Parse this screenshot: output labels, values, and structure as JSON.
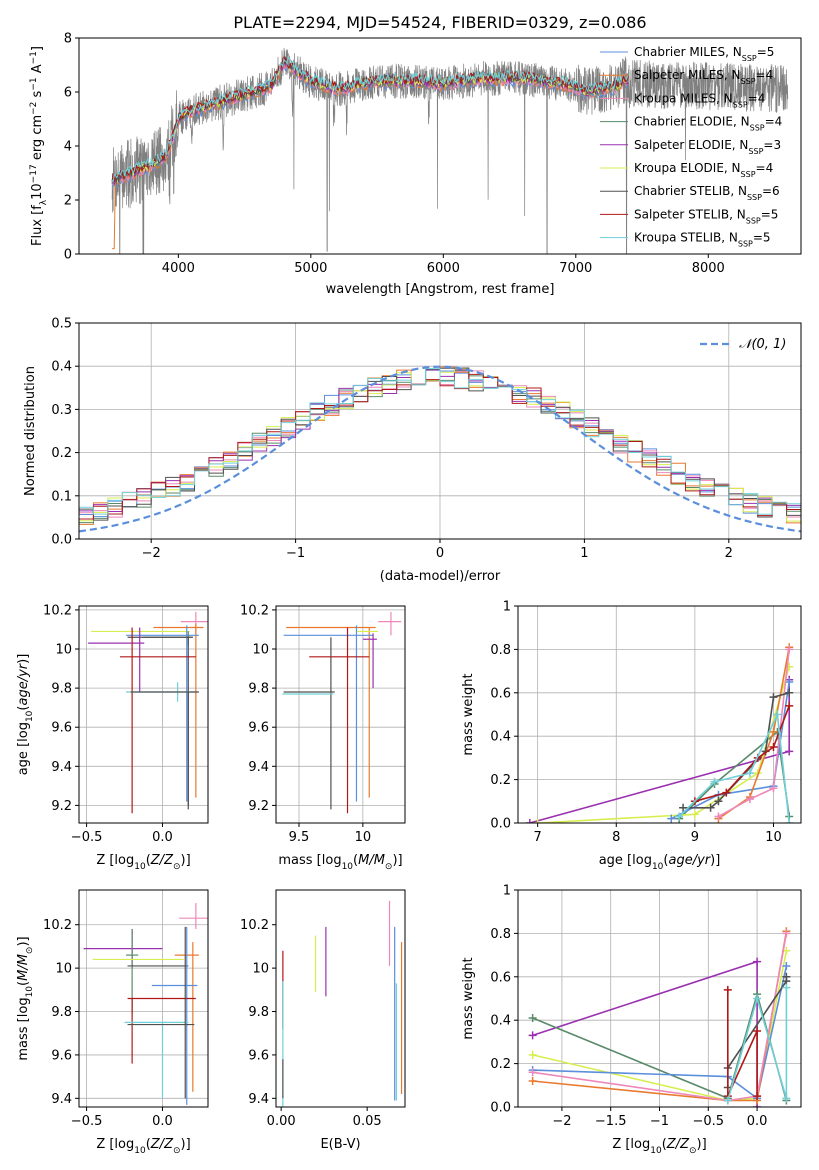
{
  "figure_title": "PLATE=2294, MJD=54524, FIBERID=0329, z=0.086",
  "colors": {
    "chabrier_miles": "#5b8fdc",
    "salpeter_miles": "#e87a30",
    "kroupa_miles": "#ee88bb",
    "chabrier_elodie": "#5a8a6a",
    "salpeter_elodie": "#9a30b0",
    "kroupa_elodie": "#d8ee50",
    "chabrier_stelib": "#505050",
    "salpeter_stelib": "#b01818",
    "kroupa_stelib": "#70d0d8",
    "data": "#808080",
    "normal": "#5b8fdc"
  },
  "chart_data": [
    {
      "id": "spectrum",
      "type": "line",
      "xlabel": "wavelength [Angstrom, rest frame]",
      "ylabel": "Flux [f",
      "xlim": [
        3250,
        8700
      ],
      "ylim": [
        0,
        8
      ],
      "xticks": [
        4000,
        5000,
        6000,
        7000,
        8000
      ],
      "yticks": [
        0,
        2,
        4,
        6,
        8
      ],
      "grid": false,
      "legend_position": "top-right",
      "legend": [
        {
          "key": "chabrier_miles",
          "label": "Chabrier MILES, N",
          "sub": "SSP",
          "value": "=5"
        },
        {
          "key": "salpeter_miles",
          "label": "Salpeter MILES, N",
          "sub": "SSP",
          "value": "=4"
        },
        {
          "key": "kroupa_miles",
          "label": "Kroupa MILES, N",
          "sub": "SSP",
          "value": "=4"
        },
        {
          "key": "chabrier_elodie",
          "label": "Chabrier ELODIE, N",
          "sub": "SSP",
          "value": "=4"
        },
        {
          "key": "salpeter_elodie",
          "label": "Salpeter ELODIE, N",
          "sub": "SSP",
          "value": "=3"
        },
        {
          "key": "kroupa_elodie",
          "label": "Kroupa ELODIE, N",
          "sub": "SSP",
          "value": "=4"
        },
        {
          "key": "chabrier_stelib",
          "label": "Chabrier STELIB, N",
          "sub": "SSP",
          "value": "=6"
        },
        {
          "key": "salpeter_stelib",
          "label": "Salpeter STELIB, N",
          "sub": "SSP",
          "value": "=5"
        },
        {
          "key": "kroupa_stelib",
          "label": "Kroupa STELIB, N",
          "sub": "SSP",
          "value": "=5"
        }
      ],
      "continuum": {
        "x": [
          3500,
          3650,
          3800,
          3900,
          3950,
          4000,
          4100,
          4300,
          4500,
          4700,
          4800,
          5000,
          5200,
          5500,
          5800,
          6000,
          6300,
          6600,
          6900,
          7100,
          7300,
          7400
        ],
        "y": [
          2.7,
          3.0,
          3.3,
          3.6,
          4.2,
          5.0,
          5.3,
          5.6,
          5.9,
          6.2,
          7.1,
          6.4,
          6.1,
          6.4,
          6.4,
          6.3,
          6.5,
          6.5,
          6.3,
          6.0,
          6.2,
          6.5
        ]
      },
      "model_range": [
        3500,
        7400
      ],
      "data_range": [
        3500,
        8600
      ]
    },
    {
      "id": "residuals",
      "type": "histogram",
      "xlabel": "(data-model)/error",
      "ylabel": "Normed distribution",
      "xlim": [
        -2.5,
        2.5
      ],
      "ylim": [
        0,
        0.5
      ],
      "xticks": [
        -2,
        -1,
        0,
        1,
        2
      ],
      "yticks": [
        0.0,
        0.1,
        0.2,
        0.3,
        0.4,
        0.5
      ],
      "grid": true,
      "legend_position": "top-right",
      "legend_label": "𝒩(0, 1)",
      "bin_width": 0.1,
      "reference_curve": "normal(0,1)"
    },
    {
      "id": "age_vs_Z",
      "type": "errorbar",
      "xlabel": "Z [log",
      "ylabel": "age  [log",
      "xlim": [
        -0.55,
        0.3
      ],
      "ylim": [
        9.11,
        10.22
      ],
      "xticks": [
        -0.5,
        0.0
      ],
      "yticks": [
        9.2,
        9.4,
        9.6,
        9.8,
        10.0,
        10.2
      ],
      "grid": true,
      "points": [
        {
          "key": "kroupa_miles",
          "x": 0.22,
          "y": 10.14,
          "xerr": [
            0.1,
            0.08
          ],
          "yerr": [
            0.07,
            0.05
          ]
        },
        {
          "key": "salpeter_miles",
          "x": 0.22,
          "y": 10.11,
          "xerr": [
            0.28,
            0.05
          ],
          "yerr": [
            0.87,
            0.02
          ]
        },
        {
          "key": "kroupa_elodie",
          "x": 0.05,
          "y": 10.09,
          "xerr": [
            0.52,
            0.13
          ],
          "yerr": [
            0.0,
            0.0
          ]
        },
        {
          "key": "chabrier_miles",
          "x": 0.16,
          "y": 10.07,
          "xerr": [
            0.4,
            0.08
          ],
          "yerr": [
            0.85,
            0.05
          ]
        },
        {
          "key": "chabrier_elodie",
          "x": 0.17,
          "y": 10.06,
          "xerr": [
            0.3,
            0.03
          ],
          "yerr": [
            0.04,
            0.03
          ]
        },
        {
          "key": "chabrier_stelib",
          "x": 0.17,
          "y": 10.06,
          "xerr": [
            0.4,
            0.03
          ],
          "yerr": [
            0.88,
            0.0
          ]
        },
        {
          "key": "salpeter_elodie",
          "x": -0.15,
          "y": 10.03,
          "xerr": [
            0.34,
            0.03
          ],
          "yerr": [
            0.25,
            0.08
          ]
        },
        {
          "key": "salpeter_stelib",
          "x": -0.2,
          "y": 9.96,
          "xerr": [
            0.08,
            0.42
          ],
          "yerr": [
            0.8,
            0.15
          ]
        },
        {
          "key": "kroupa_stelib",
          "x": 0.1,
          "y": 9.78,
          "xerr": [
            0.34,
            0.13
          ],
          "yerr": [
            0.05,
            0.05
          ]
        },
        {
          "key": "chabrier_stelib",
          "x": 0.17,
          "y": 9.78,
          "xerr": [
            0.38,
            0.07
          ],
          "yerr": [
            0.58,
            0.0
          ]
        }
      ]
    },
    {
      "id": "age_vs_mass",
      "type": "errorbar",
      "xlabel": "mass [log",
      "ylabel": "",
      "xlim": [
        9.32,
        10.33
      ],
      "ylim": [
        9.11,
        10.22
      ],
      "xticks": [
        9.5,
        10.0
      ],
      "yticks": [
        9.2,
        9.4,
        9.6,
        9.8,
        10.0,
        10.2
      ],
      "grid": true,
      "points": [
        {
          "key": "kroupa_miles",
          "x": 10.22,
          "y": 10.14,
          "xerr": [
            0.1,
            0.08
          ],
          "yerr": [
            0.07,
            0.05
          ]
        },
        {
          "key": "salpeter_miles",
          "x": 10.05,
          "y": 10.11,
          "xerr": [
            0.65,
            0.05
          ],
          "yerr": [
            0.87,
            0.0
          ]
        },
        {
          "key": "kroupa_elodie",
          "x": 10.05,
          "y": 10.09,
          "xerr": [
            0.1,
            0.07
          ],
          "yerr": [
            0.0,
            0.0
          ]
        },
        {
          "key": "chabrier_miles",
          "x": 9.95,
          "y": 10.07,
          "xerr": [
            0.57,
            0.13
          ],
          "yerr": [
            0.85,
            0.05
          ]
        },
        {
          "key": "salpeter_elodie",
          "x": 10.08,
          "y": 10.05,
          "xerr": [
            0.08,
            0.03
          ],
          "yerr": [
            0.25,
            0.03
          ]
        },
        {
          "key": "chabrier_stelib",
          "x": 9.75,
          "y": 10.06,
          "xerr": [
            0.0,
            0.0
          ],
          "yerr": [
            0.88,
            0.0
          ]
        },
        {
          "key": "salpeter_stelib",
          "x": 9.88,
          "y": 9.96,
          "xerr": [
            0.3,
            0.17
          ],
          "yerr": [
            0.8,
            0.15
          ]
        },
        {
          "key": "kroupa_stelib",
          "x": 9.65,
          "y": 9.77,
          "xerr": [
            0.28,
            0.12
          ],
          "yerr": [
            0.0,
            0.0
          ]
        },
        {
          "key": "chabrier_stelib",
          "x": 9.6,
          "y": 9.78,
          "xerr": [
            0.22,
            0.18
          ],
          "yerr": [
            0.0,
            0.0
          ]
        }
      ]
    },
    {
      "id": "massweight_vs_age",
      "type": "line",
      "xlabel": "age  [log",
      "ylabel": "mass weight",
      "xlim": [
        6.75,
        10.35
      ],
      "ylim": [
        0,
        1
      ],
      "xticks": [
        7,
        8,
        9,
        10
      ],
      "yticks": [
        0.0,
        0.2,
        0.4,
        0.6,
        0.8,
        1.0
      ],
      "grid": true,
      "series": [
        {
          "key": "salpeter_elodie",
          "x": [
            6.9,
            10.2,
            10.2
          ],
          "y": [
            0.0,
            0.33,
            0.66
          ]
        },
        {
          "key": "chabrier_elodie",
          "x": [
            8.8,
            9.25,
            10.05,
            10.2
          ],
          "y": [
            0.02,
            0.18,
            0.42,
            0.03
          ]
        },
        {
          "key": "kroupa_elodie",
          "x": [
            7.0,
            9.0,
            9.8,
            10.2
          ],
          "y": [
            0.0,
            0.04,
            0.23,
            0.72
          ]
        },
        {
          "key": "chabrier_miles",
          "x": [
            8.7,
            9.3,
            10.0,
            10.2
          ],
          "y": [
            0.02,
            0.13,
            0.17,
            0.65
          ]
        },
        {
          "key": "salpeter_miles",
          "x": [
            9.3,
            9.7,
            10.0,
            10.2
          ],
          "y": [
            0.02,
            0.12,
            0.42,
            0.81
          ]
        },
        {
          "key": "kroupa_miles",
          "x": [
            9.3,
            9.7,
            10.0,
            10.2
          ],
          "y": [
            0.03,
            0.11,
            0.16,
            0.8
          ]
        },
        {
          "key": "chabrier_stelib",
          "x": [
            8.85,
            9.2,
            9.3,
            9.9,
            10.0,
            10.2
          ],
          "y": [
            0.07,
            0.07,
            0.1,
            0.33,
            0.58,
            0.6
          ]
        },
        {
          "key": "salpeter_stelib",
          "x": [
            9.0,
            9.4,
            9.8,
            10.0,
            10.2
          ],
          "y": [
            0.1,
            0.14,
            0.3,
            0.35,
            0.54
          ]
        },
        {
          "key": "kroupa_stelib",
          "x": [
            8.8,
            9.25,
            9.7,
            10.05,
            10.2
          ],
          "y": [
            0.03,
            0.19,
            0.23,
            0.5,
            0.0
          ]
        }
      ]
    },
    {
      "id": "mass_vs_Z",
      "type": "errorbar",
      "xlabel": "Z [log",
      "ylabel": "mass [log",
      "xlim": [
        -0.55,
        0.3
      ],
      "ylim": [
        9.36,
        10.36
      ],
      "xticks": [
        -0.5,
        0.0
      ],
      "yticks": [
        9.4,
        9.6,
        9.8,
        10.0,
        10.2
      ],
      "grid": true,
      "points": [
        {
          "key": "kroupa_miles",
          "x": 0.22,
          "y": 10.23,
          "xerr": [
            0.11,
            0.08
          ],
          "yerr": [
            0.05,
            0.07
          ]
        },
        {
          "key": "salpeter_elodie",
          "x": -0.2,
          "y": 10.09,
          "xerr": [
            0.32,
            0.2
          ],
          "yerr": [
            0.09,
            0.09
          ]
        },
        {
          "key": "chabrier_elodie",
          "x": -0.2,
          "y": 10.06,
          "xerr": [
            0.04,
            0.04
          ],
          "yerr": [
            0.27,
            0.12
          ]
        },
        {
          "key": "salpeter_miles",
          "x": 0.2,
          "y": 10.06,
          "xerr": [
            0.12,
            0.04
          ],
          "yerr": [
            0.63,
            0.06
          ]
        },
        {
          "key": "kroupa_elodie",
          "x": 0.04,
          "y": 10.04,
          "xerr": [
            0.5,
            0.1
          ],
          "yerr": [
            0.0,
            0.0
          ]
        },
        {
          "key": "chabrier_stelib",
          "x": 0.0,
          "y": 10.01,
          "xerr": [
            0.23,
            0.17
          ],
          "yerr": [
            0.0,
            0.0
          ]
        },
        {
          "key": "chabrier_miles",
          "x": 0.16,
          "y": 9.92,
          "xerr": [
            0.23,
            0.07
          ],
          "yerr": [
            0.55,
            0.27
          ]
        },
        {
          "key": "salpeter_stelib",
          "x": -0.2,
          "y": 9.86,
          "xerr": [
            0.03,
            0.42
          ],
          "yerr": [
            0.3,
            0.0
          ]
        },
        {
          "key": "kroupa_stelib",
          "x": 0.0,
          "y": 9.75,
          "xerr": [
            0.25,
            0.17
          ],
          "yerr": [
            0.35,
            0.0
          ]
        },
        {
          "key": "chabrier_stelib",
          "x": 0.15,
          "y": 9.74,
          "xerr": [
            0.38,
            0.06
          ],
          "yerr": [
            0.34,
            0.45
          ]
        }
      ]
    },
    {
      "id": "mass_vs_ebv",
      "type": "errorbar",
      "xlabel": "E(B-V)",
      "ylabel": "",
      "xlim": [
        -0.003,
        0.072
      ],
      "ylim": [
        9.36,
        10.36
      ],
      "xticks": [
        0.0,
        0.05
      ],
      "yticks": [
        9.4,
        9.6,
        9.8,
        10.0,
        10.2
      ],
      "grid": false,
      "points": [
        {
          "key": "kroupa_miles",
          "x": 0.063,
          "y": 10.16,
          "yerr": [
            0.15,
            0.15
          ]
        },
        {
          "key": "salpeter_elodie",
          "x": 0.026,
          "y": 10.03,
          "yerr": [
            0.16,
            0.16
          ]
        },
        {
          "key": "kroupa_elodie",
          "x": 0.02,
          "y": 10.02,
          "yerr": [
            0.13,
            0.13
          ]
        },
        {
          "key": "salpeter_miles",
          "x": 0.07,
          "y": 9.77,
          "yerr": [
            0.35,
            0.35
          ]
        },
        {
          "key": "chabrier_miles",
          "x": 0.066,
          "y": 9.79,
          "yerr": [
            0.4,
            0.4
          ]
        },
        {
          "key": "salpeter_stelib",
          "x": 0.001,
          "y": 9.9,
          "yerr": [
            0.18,
            0.18
          ]
        },
        {
          "key": "kroupa_stelib",
          "x": 0.001,
          "y": 9.62,
          "yerr": [
            0.32,
            0.32
          ]
        },
        {
          "key": "chabrier_stelib",
          "x": 0.001,
          "y": 9.49,
          "yerr": [
            0.09,
            0.09
          ]
        },
        {
          "key": "kroupa_stelib",
          "x": 0.067,
          "y": 9.66,
          "yerr": [
            0.27,
            0.27
          ]
        }
      ]
    },
    {
      "id": "massweight_vs_Z",
      "type": "line",
      "xlabel": "Z [log",
      "ylabel": "mass weight",
      "xlim": [
        -2.45,
        0.45
      ],
      "ylim": [
        0,
        1
      ],
      "xticks": [
        -2.0,
        -1.5,
        -1.0,
        -0.5,
        0.0
      ],
      "yticks": [
        0.0,
        0.2,
        0.4,
        0.6,
        0.8,
        1.0
      ],
      "grid": true,
      "series": [
        {
          "key": "salpeter_elodie",
          "x": [
            -2.3,
            0.0,
            0.0
          ],
          "y": [
            0.33,
            0.67,
            0.0
          ]
        },
        {
          "key": "chabrier_elodie",
          "x": [
            -2.3,
            -0.3,
            0.0,
            0.3
          ],
          "y": [
            0.41,
            0.04,
            0.52,
            0.03
          ]
        },
        {
          "key": "kroupa_elodie",
          "x": [
            -2.3,
            -0.3,
            0.0,
            0.3
          ],
          "y": [
            0.24,
            0.03,
            0.04,
            0.72
          ]
        },
        {
          "key": "chabrier_miles",
          "x": [
            -2.3,
            -0.3,
            0.0,
            0.3
          ],
          "y": [
            0.17,
            0.14,
            0.04,
            0.65
          ]
        },
        {
          "key": "salpeter_miles",
          "x": [
            -2.3,
            -0.3,
            0.0,
            0.3
          ],
          "y": [
            0.12,
            0.03,
            0.03,
            0.81
          ]
        },
        {
          "key": "kroupa_miles",
          "x": [
            -2.3,
            -0.3,
            0.0,
            0.3
          ],
          "y": [
            0.16,
            0.03,
            0.05,
            0.8
          ]
        },
        {
          "key": "chabrier_stelib",
          "x": [
            -0.3,
            -0.3,
            0.3,
            0.3
          ],
          "y": [
            0.09,
            0.18,
            0.58,
            0.6
          ]
        },
        {
          "key": "salpeter_stelib",
          "x": [
            -0.3,
            -0.3,
            0.0,
            0.0
          ],
          "y": [
            0.54,
            0.05,
            0.35,
            0.05
          ]
        },
        {
          "key": "kroupa_stelib",
          "x": [
            -0.3,
            0.0,
            0.3,
            0.3
          ],
          "y": [
            0.03,
            0.5,
            0.04,
            0.55
          ]
        }
      ]
    }
  ]
}
